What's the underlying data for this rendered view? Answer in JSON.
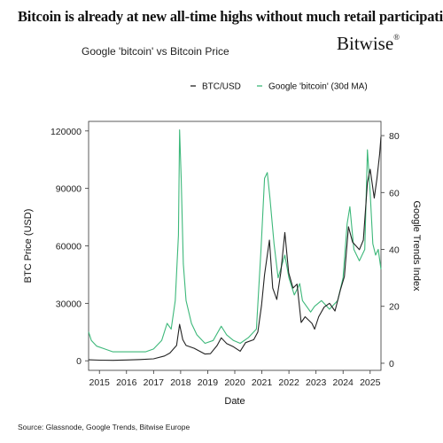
{
  "header": {
    "headline": "Bitcoin is already at new all-time highs without much retail participation",
    "brand": "Bitwise",
    "brand_mark": "®",
    "subtitle": "Google 'bitcoin' vs Bitcoin Price"
  },
  "footer": {
    "source": "Source: Glassnode, Google Trends, Bitwise Europe"
  },
  "chart_data": {
    "type": "line",
    "xlabel": "Date",
    "ylabel": "BTC Price (USD)",
    "y2label": "Google Trends Index",
    "xlim": [
      2014.6,
      2025.4
    ],
    "ylim": [
      -5000,
      125000
    ],
    "y2lim": [
      -2.5,
      85
    ],
    "x_ticks": [
      "2015",
      "2016",
      "2017",
      "2018",
      "2019",
      "2020",
      "2021",
      "2022",
      "2023",
      "2024",
      "2025"
    ],
    "y_ticks": [
      "0",
      "30000",
      "60000",
      "90000",
      "120000"
    ],
    "y2_ticks": [
      "0",
      "20",
      "40",
      "60",
      "80"
    ],
    "grid": false,
    "legend_position": "top-right",
    "series": [
      {
        "name": "BTC/USD",
        "axis": "left",
        "color": "#222222",
        "points": [
          [
            2014.6,
            500
          ],
          [
            2015.0,
            300
          ],
          [
            2015.5,
            250
          ],
          [
            2016.0,
            430
          ],
          [
            2016.5,
            650
          ],
          [
            2017.0,
            1000
          ],
          [
            2017.4,
            2500
          ],
          [
            2017.6,
            4000
          ],
          [
            2017.85,
            8000
          ],
          [
            2017.96,
            19000
          ],
          [
            2018.08,
            11000
          ],
          [
            2018.2,
            8000
          ],
          [
            2018.5,
            6500
          ],
          [
            2018.9,
            3500
          ],
          [
            2019.1,
            3700
          ],
          [
            2019.35,
            8000
          ],
          [
            2019.5,
            12000
          ],
          [
            2019.7,
            9000
          ],
          [
            2019.95,
            7300
          ],
          [
            2020.2,
            5000
          ],
          [
            2020.4,
            9500
          ],
          [
            2020.7,
            11000
          ],
          [
            2020.85,
            15000
          ],
          [
            2020.99,
            29000
          ],
          [
            2021.1,
            45000
          ],
          [
            2021.28,
            63000
          ],
          [
            2021.4,
            38000
          ],
          [
            2021.55,
            32000
          ],
          [
            2021.7,
            46000
          ],
          [
            2021.85,
            67000
          ],
          [
            2021.99,
            46000
          ],
          [
            2022.15,
            38000
          ],
          [
            2022.3,
            40000
          ],
          [
            2022.45,
            20000
          ],
          [
            2022.6,
            23000
          ],
          [
            2022.85,
            19500
          ],
          [
            2022.95,
            16500
          ],
          [
            2023.1,
            23000
          ],
          [
            2023.3,
            28000
          ],
          [
            2023.5,
            30000
          ],
          [
            2023.7,
            26000
          ],
          [
            2023.9,
            37000
          ],
          [
            2024.05,
            44000
          ],
          [
            2024.2,
            70000
          ],
          [
            2024.35,
            62000
          ],
          [
            2024.6,
            58000
          ],
          [
            2024.75,
            63000
          ],
          [
            2024.9,
            93000
          ],
          [
            2025.0,
            100000
          ],
          [
            2025.15,
            85000
          ],
          [
            2025.25,
            95000
          ],
          [
            2025.35,
            108000
          ],
          [
            2025.4,
            117000
          ]
        ]
      },
      {
        "name": "Google 'bitcoin' (30d MA)",
        "axis": "right",
        "color": "#3db87a",
        "points": [
          [
            2014.6,
            11
          ],
          [
            2014.7,
            8
          ],
          [
            2014.9,
            6
          ],
          [
            2015.2,
            5
          ],
          [
            2015.5,
            4
          ],
          [
            2015.9,
            4
          ],
          [
            2016.3,
            4
          ],
          [
            2016.7,
            4
          ],
          [
            2017.0,
            5
          ],
          [
            2017.3,
            8
          ],
          [
            2017.5,
            14
          ],
          [
            2017.65,
            12
          ],
          [
            2017.8,
            22
          ],
          [
            2017.92,
            45
          ],
          [
            2017.96,
            82
          ],
          [
            2018.02,
            65
          ],
          [
            2018.1,
            35
          ],
          [
            2018.2,
            22
          ],
          [
            2018.4,
            14
          ],
          [
            2018.6,
            10
          ],
          [
            2018.9,
            7
          ],
          [
            2019.2,
            8
          ],
          [
            2019.5,
            13
          ],
          [
            2019.7,
            10
          ],
          [
            2019.95,
            8
          ],
          [
            2020.2,
            7
          ],
          [
            2020.5,
            9
          ],
          [
            2020.8,
            12
          ],
          [
            2020.97,
            40
          ],
          [
            2021.1,
            65
          ],
          [
            2021.2,
            67
          ],
          [
            2021.3,
            58
          ],
          [
            2021.45,
            42
          ],
          [
            2021.6,
            30
          ],
          [
            2021.85,
            38
          ],
          [
            2022.0,
            30
          ],
          [
            2022.2,
            24
          ],
          [
            2022.4,
            28
          ],
          [
            2022.5,
            22
          ],
          [
            2022.8,
            18
          ],
          [
            2022.95,
            20
          ],
          [
            2023.2,
            22
          ],
          [
            2023.5,
            19
          ],
          [
            2023.8,
            22
          ],
          [
            2024.0,
            30
          ],
          [
            2024.15,
            49
          ],
          [
            2024.25,
            55
          ],
          [
            2024.4,
            40
          ],
          [
            2024.6,
            36
          ],
          [
            2024.8,
            40
          ],
          [
            2024.9,
            75
          ],
          [
            2025.0,
            60
          ],
          [
            2025.1,
            42
          ],
          [
            2025.2,
            38
          ],
          [
            2025.3,
            40
          ],
          [
            2025.4,
            33
          ]
        ]
      }
    ]
  }
}
